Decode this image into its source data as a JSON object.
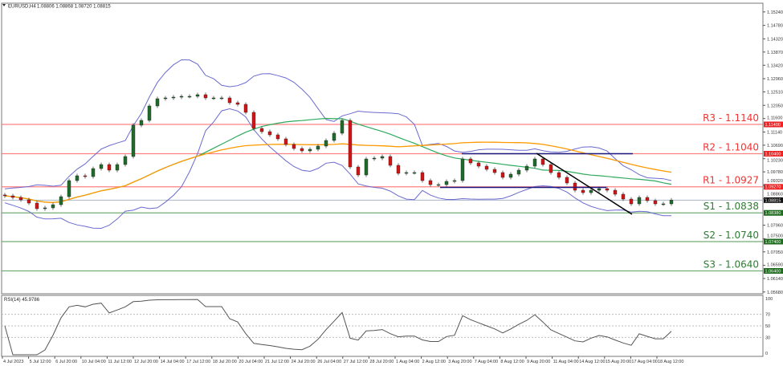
{
  "header": {
    "symbol": "EURUSD,H4",
    "ohlc": "1.08806 1.08868 1.08720 1.08815"
  },
  "rsi": {
    "label": "RSI(14) 45.9786",
    "axis": [
      "100",
      "70",
      "50",
      "30",
      "0"
    ],
    "levels": [
      70,
      50,
      30
    ]
  },
  "colors": {
    "resistance": "#ff6b6b",
    "support": "#5c9e5c",
    "bull": "#1e6b2a",
    "bear": "#d41414",
    "ma_fast": "#2eaa5c",
    "ma_slow": "#ff9900",
    "bollinger": "#6a6ad0",
    "rectangle": "#1a1a80",
    "trendline": "#000000",
    "rsi": "#555555"
  },
  "chart_data": {
    "type": "candlestick",
    "instrument": "EURUSD",
    "timeframe": "H4",
    "price_ticks": [
      "1.15240",
      "1.14780",
      "1.14320",
      "1.13870",
      "1.13420",
      "1.12960",
      "1.12510",
      "1.12050",
      "1.11600",
      "1.11140",
      "1.10690",
      "1.10230",
      "1.09780",
      "1.09320",
      "1.08860",
      "1.07960",
      "1.07500",
      "1.07050",
      "1.06590",
      "1.06140",
      "1.05680"
    ],
    "time_ticks": [
      "4 Jul 2023",
      "5 Jul 12:00",
      "6 Jul 20:00",
      "10 Jul 04:00",
      "11 Jul 12:00",
      "12 Jul 20:00",
      "14 Jul 04:00",
      "17 Jul 12:00",
      "18 Jul 20:00",
      "20 Jul 04:00",
      "21 Jul 12:00",
      "24 Jul 20:00",
      "26 Jul 04:00",
      "27 Jul 12:00",
      "28 Jul 20:00",
      "1 Aug 04:00",
      "2 Aug 12:00",
      "3 Aug 20:00",
      "7 Aug 04:00",
      "8 Aug 12:00",
      "9 Aug 20:00",
      "11 Aug 04:00",
      "14 Aug 12:00",
      "15 Aug 20:00",
      "17 Aug 04:00",
      "18 Aug 12:00"
    ],
    "closes": [
      1.08962,
      1.08907,
      1.08825,
      1.08715,
      1.08523,
      1.08551,
      1.0866,
      1.08934,
      1.09482,
      1.09647,
      1.09619,
      1.09893,
      1.1003,
      1.09838,
      1.1003,
      1.10304,
      1.11373,
      1.11537,
      1.1203,
      1.12277,
      1.12304,
      1.12332,
      1.12359,
      1.12359,
      1.12414,
      1.12304,
      1.12304,
      1.12304,
      1.1214,
      1.12085,
      1.11811,
      1.11263,
      1.11153,
      1.11044,
      1.10907,
      1.10715,
      1.10578,
      1.10496,
      1.10551,
      1.1066,
      1.10852,
      1.11099,
      1.11537,
      1.09948,
      1.09674,
      1.10222,
      1.10249,
      1.10304,
      1.10003,
      1.09729,
      1.09756,
      1.09756,
      1.09482,
      1.09345,
      1.09345,
      1.09455,
      1.09482,
      1.10222,
      1.10085,
      1.09975,
      1.09866,
      1.09756,
      1.09592,
      1.09701,
      1.09838,
      1.09975,
      1.10222,
      1.1003,
      1.09756,
      1.09592,
      1.094,
      1.09153,
      1.09071,
      1.09153,
      1.09208,
      1.09153,
      1.09016,
      1.08852,
      1.08688,
      1.08907,
      1.08797,
      1.08688,
      1.08688,
      1.08815
    ],
    "current_price": {
      "value": 1.08815,
      "label": "1.08815"
    },
    "levels": [
      {
        "name": "R3",
        "text": "R3 - 1.1140",
        "value": 1.114,
        "tag": "1.11400",
        "kind": "resistance"
      },
      {
        "name": "R2",
        "text": "R2 - 1.1040",
        "value": 1.104,
        "tag": "1.10400",
        "kind": "resistance"
      },
      {
        "name": "R1",
        "text": "R1 - 1.0927",
        "value": 1.0927,
        "tag": "1.09270",
        "kind": "resistance"
      },
      {
        "name": "S1",
        "text": "S1 - 1.0838",
        "value": 1.0838,
        "tag": "1.08380",
        "kind": "support"
      },
      {
        "name": "S2",
        "text": "S2 - 1.0740",
        "value": 1.074,
        "tag": "1.07400",
        "kind": "support"
      },
      {
        "name": "S3",
        "text": "S3 - 1.0640",
        "value": 1.064,
        "tag": "1.06400",
        "kind": "support"
      }
    ],
    "ylim": [
      1.0555,
      1.1535
    ],
    "rsi_ylim": [
      0,
      100
    ]
  }
}
